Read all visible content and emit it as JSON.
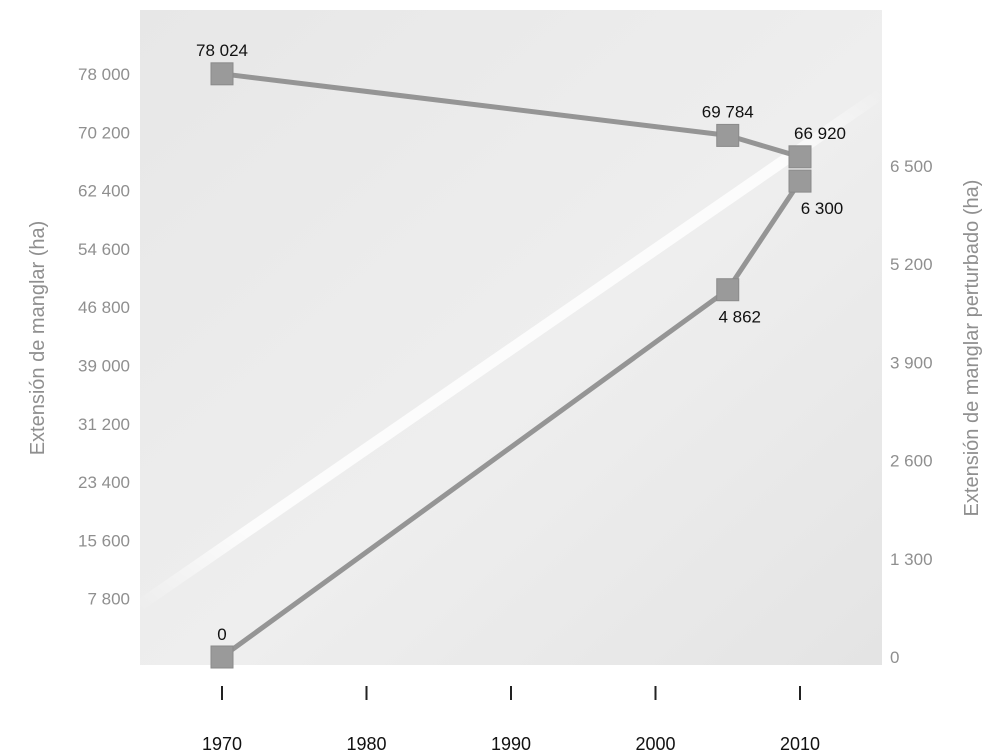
{
  "chart_data": {
    "type": "line",
    "title": "",
    "x_axis": {
      "ticks": [
        "1970",
        "1980",
        "1990",
        "2000",
        "2010"
      ],
      "range": [
        1970,
        2010
      ]
    },
    "y_axis_left": {
      "label": "Extensión de manglar (ha)",
      "ticks": [
        {
          "value": 78000,
          "label": "78 000"
        },
        {
          "value": 70200,
          "label": "70 200"
        },
        {
          "value": 62400,
          "label": "62 400"
        },
        {
          "value": 54600,
          "label": "54 600"
        },
        {
          "value": 46800,
          "label": "46 800"
        },
        {
          "value": 39000,
          "label": "39 000"
        },
        {
          "value": 31200,
          "label": "31 200"
        },
        {
          "value": 23400,
          "label": "23 400"
        },
        {
          "value": 15600,
          "label": "15 600"
        },
        {
          "value": 7800,
          "label": "7 800"
        }
      ]
    },
    "y_axis_right": {
      "label": "Extensión de manglar perturbado (ha)",
      "ticks": [
        {
          "value": 6500,
          "label": "6 500"
        },
        {
          "value": 5200,
          "label": "5 200"
        },
        {
          "value": 3900,
          "label": "3 900"
        },
        {
          "value": 2600,
          "label": "2 600"
        },
        {
          "value": 1300,
          "label": "1 300"
        },
        {
          "value": 0,
          "label": "0"
        }
      ]
    },
    "series": [
      {
        "axis": "left",
        "points": [
          {
            "x": 1970,
            "y": 78024,
            "label": "78 024"
          },
          {
            "x": 2005,
            "y": 69784,
            "label": "69 784"
          },
          {
            "x": 2010,
            "y": 66920,
            "label": "66 920"
          }
        ]
      },
      {
        "axis": "right",
        "points": [
          {
            "x": 1970,
            "y": 0,
            "label": "0"
          },
          {
            "x": 2005,
            "y": 4862,
            "label": "4 862"
          },
          {
            "x": 2010,
            "y": 6300,
            "label": "6 300"
          }
        ]
      }
    ],
    "colors": {
      "line": "#959595",
      "marker": "#9a9a9a",
      "tick_text": "#8f8f8f",
      "x_text": "#111111",
      "label_text": "#111111"
    },
    "grid": false
  }
}
